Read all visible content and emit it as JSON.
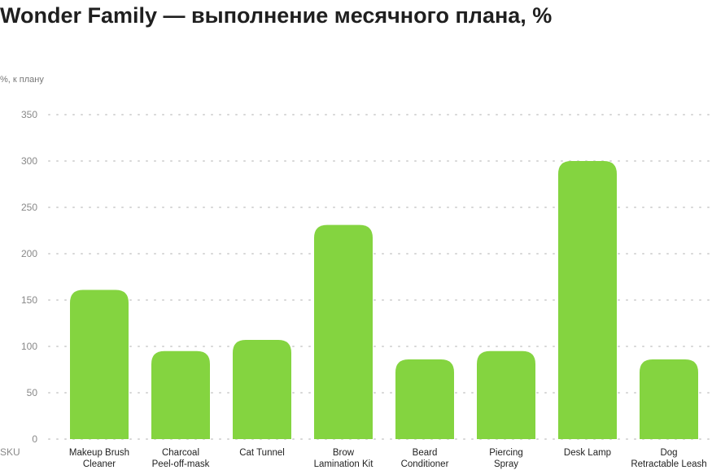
{
  "chart_data": {
    "type": "bar",
    "title": "Wonder Family — выполнение месячного плана, %",
    "ylabel": "%, к плану",
    "xlabel": "SKU",
    "ylim": [
      0,
      350
    ],
    "yticks": [
      0,
      50,
      100,
      150,
      200,
      250,
      300,
      350
    ],
    "grid": true,
    "categories": [
      [
        "Makeup Brush",
        "Cleaner"
      ],
      [
        "Charcoal",
        "Peel-off-mask"
      ],
      [
        "Cat Tunnel"
      ],
      [
        "Brow",
        "Lamination Kit"
      ],
      [
        "Beard",
        "Conditioner"
      ],
      [
        "Piercing",
        "Spray"
      ],
      [
        "Desk Lamp"
      ],
      [
        "Dog",
        "Retractable Leash"
      ]
    ],
    "values": [
      161,
      95,
      107,
      231,
      86,
      95,
      300,
      86
    ],
    "bar_color": "#84d440"
  }
}
